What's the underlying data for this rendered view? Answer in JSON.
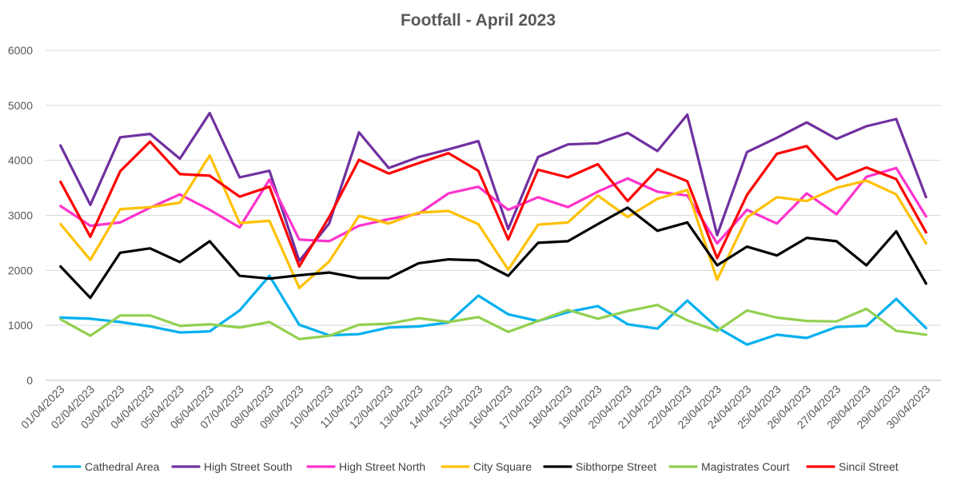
{
  "chart_data": {
    "type": "line",
    "title": "Footfall - April 2023",
    "xlabel": "",
    "ylabel": "",
    "ylim": [
      0,
      6000
    ],
    "yticks": [
      0,
      1000,
      2000,
      3000,
      4000,
      5000,
      6000
    ],
    "grid": true,
    "legend_position": "bottom",
    "categories": [
      "01/04/2023",
      "02/04/2023",
      "03/04/2023",
      "04/04/2023",
      "05/04/2023",
      "06/04/2023",
      "07/04/2023",
      "08/04/2023",
      "09/04/2023",
      "10/04/2023",
      "11/04/2023",
      "12/04/2023",
      "13/04/2023",
      "14/04/2023",
      "15/04/2023",
      "16/04/2023",
      "17/04/2023",
      "18/04/2023",
      "19/04/2023",
      "20/04/2023",
      "21/04/2023",
      "22/04/2023",
      "23/04/2023",
      "24/04/2023",
      "25/04/2023",
      "26/04/2023",
      "27/04/2023",
      "28/04/2023",
      "29/04/2023",
      "30/04/2023"
    ],
    "series": [
      {
        "name": "Cathedral Area",
        "color": "#00b0f0",
        "values": [
          1140,
          1120,
          1060,
          980,
          870,
          890,
          1270,
          1900,
          1010,
          820,
          840,
          960,
          980,
          1050,
          1540,
          1200,
          1080,
          1240,
          1350,
          1020,
          940,
          1450,
          960,
          650,
          830,
          770,
          970,
          990,
          1480,
          950
        ]
      },
      {
        "name": "High Street South",
        "color": "#7030a0",
        "values": [
          4270,
          3190,
          4420,
          4480,
          4030,
          4860,
          3690,
          3810,
          2170,
          2850,
          4510,
          3860,
          4060,
          4200,
          4350,
          2750,
          4060,
          4290,
          4310,
          4500,
          4170,
          4830,
          2640,
          4150,
          4410,
          4690,
          4390,
          4620,
          4750,
          3330
        ]
      },
      {
        "name": "High Street North",
        "color": "#ff33cc",
        "values": [
          3170,
          2810,
          2870,
          3140,
          3380,
          3100,
          2780,
          3650,
          2560,
          2530,
          2810,
          2930,
          3030,
          3400,
          3520,
          3100,
          3330,
          3150,
          3430,
          3670,
          3430,
          3360,
          2490,
          3100,
          2850,
          3400,
          3020,
          3700,
          3860,
          2980
        ]
      },
      {
        "name": "City Square",
        "color": "#ffc000",
        "values": [
          2840,
          2190,
          3110,
          3150,
          3230,
          4090,
          2860,
          2900,
          1680,
          2160,
          2990,
          2850,
          3050,
          3080,
          2840,
          2010,
          2830,
          2870,
          3360,
          2970,
          3300,
          3460,
          1830,
          2960,
          3330,
          3260,
          3500,
          3630,
          3380,
          2490
        ]
      },
      {
        "name": "Sibthorpe Street",
        "color": "#000000",
        "values": [
          2070,
          1500,
          2320,
          2400,
          2150,
          2530,
          1900,
          1850,
          1910,
          1960,
          1860,
          1860,
          2130,
          2200,
          2180,
          1900,
          2500,
          2530,
          2840,
          3140,
          2720,
          2870,
          2090,
          2430,
          2270,
          2590,
          2530,
          2090,
          2710,
          1760
        ]
      },
      {
        "name": "Magistrates Court",
        "color": "#92d050",
        "values": [
          1110,
          810,
          1180,
          1180,
          990,
          1020,
          960,
          1060,
          750,
          810,
          1010,
          1030,
          1130,
          1060,
          1150,
          880,
          1080,
          1280,
          1120,
          1260,
          1370,
          1090,
          900,
          1270,
          1140,
          1080,
          1070,
          1300,
          900,
          830
        ]
      },
      {
        "name": "Sincil Street",
        "color": "#ff0000",
        "values": [
          3610,
          2610,
          3800,
          4340,
          3750,
          3720,
          3340,
          3520,
          2070,
          2970,
          4010,
          3760,
          3950,
          4130,
          3810,
          2560,
          3830,
          3690,
          3930,
          3260,
          3840,
          3620,
          2220,
          3370,
          4120,
          4260,
          3650,
          3870,
          3660,
          2690
        ]
      }
    ]
  }
}
